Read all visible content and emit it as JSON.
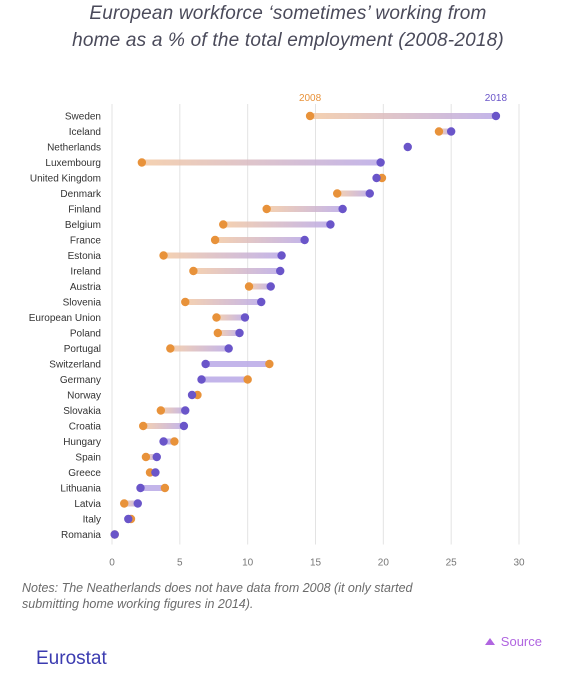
{
  "title_lines": [
    "European workforce ‘sometimes’ working from",
    "home as a % of the total employment (2008-2018)"
  ],
  "notes_lines": [
    "Notes: The Neatherlands does not have data from 2008 (it only started",
    "submitting home working figures in 2014)."
  ],
  "source_label": "Source",
  "brand": "Eurostat",
  "colors": {
    "y2008": "#e8923a",
    "y2018": "#6a55c9",
    "bar_start": "#f3c9a3",
    "bar_end": "#b9a8e6",
    "grid": "#e3e3e3",
    "text": "#333333",
    "tick": "#777777"
  },
  "chart_data": {
    "type": "dumbbell",
    "series_labels": {
      "start": "2008",
      "end": "2018"
    },
    "xlim": [
      0,
      30
    ],
    "xticks": [
      0,
      5,
      10,
      15,
      20,
      25,
      30
    ],
    "xlabel": "",
    "ylabel": "",
    "grid": true,
    "rows": [
      {
        "country": "Sweden",
        "v2008": 14.6,
        "v2018": 28.3
      },
      {
        "country": "Iceland",
        "v2008": 24.1,
        "v2018": 25.0
      },
      {
        "country": "Netherlands",
        "v2008": null,
        "v2018": 21.8
      },
      {
        "country": "Luxembourg",
        "v2008": 2.2,
        "v2018": 19.8
      },
      {
        "country": "United Kingdom",
        "v2008": 19.9,
        "v2018": 19.5
      },
      {
        "country": "Denmark",
        "v2008": 16.6,
        "v2018": 19.0
      },
      {
        "country": "Finland",
        "v2008": 11.4,
        "v2018": 17.0
      },
      {
        "country": "Belgium",
        "v2008": 8.2,
        "v2018": 16.1
      },
      {
        "country": "France",
        "v2008": 7.6,
        "v2018": 14.2
      },
      {
        "country": "Estonia",
        "v2008": 3.8,
        "v2018": 12.5
      },
      {
        "country": "Ireland",
        "v2008": 6.0,
        "v2018": 12.4
      },
      {
        "country": "Austria",
        "v2008": 10.1,
        "v2018": 11.7
      },
      {
        "country": "Slovenia",
        "v2008": 5.4,
        "v2018": 11.0
      },
      {
        "country": "European Union",
        "v2008": 7.7,
        "v2018": 9.8
      },
      {
        "country": "Poland",
        "v2008": 7.8,
        "v2018": 9.4
      },
      {
        "country": "Portugal",
        "v2008": 4.3,
        "v2018": 8.6
      },
      {
        "country": "Switzerland",
        "v2008": 11.6,
        "v2018": 6.9
      },
      {
        "country": "Germany",
        "v2008": 10.0,
        "v2018": 6.6
      },
      {
        "country": "Norway",
        "v2008": 6.3,
        "v2018": 5.9
      },
      {
        "country": "Slovakia",
        "v2008": 3.6,
        "v2018": 5.4
      },
      {
        "country": "Croatia",
        "v2008": 2.3,
        "v2018": 5.3
      },
      {
        "country": "Hungary",
        "v2008": 4.6,
        "v2018": 3.8
      },
      {
        "country": "Spain",
        "v2008": 2.5,
        "v2018": 3.3
      },
      {
        "country": "Greece",
        "v2008": 2.8,
        "v2018": 3.2
      },
      {
        "country": "Lithuania",
        "v2008": 3.9,
        "v2018": 2.1
      },
      {
        "country": "Latvia",
        "v2008": 0.9,
        "v2018": 1.9
      },
      {
        "country": "Italy",
        "v2008": 1.4,
        "v2018": 1.2
      },
      {
        "country": "Romania",
        "v2008": 0.2,
        "v2018": 0.2
      }
    ]
  }
}
